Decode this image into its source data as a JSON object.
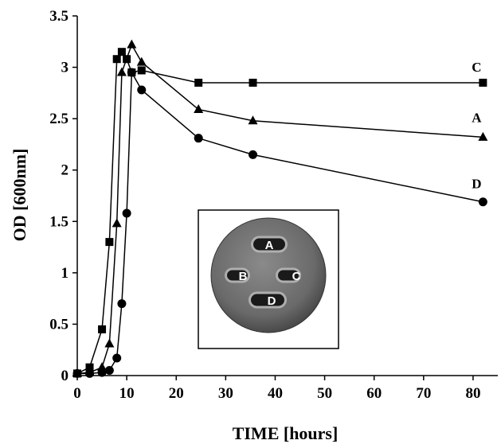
{
  "chart_data": {
    "type": "line",
    "title": "",
    "xlabel": "TIME [hours]",
    "ylabel": "OD [600nm]",
    "xlim": [
      0,
      85
    ],
    "ylim": [
      0,
      3.5
    ],
    "x_ticks": [
      "0",
      "10",
      "20",
      "30",
      "40",
      "50",
      "60",
      "70",
      "80"
    ],
    "y_ticks": [
      "0",
      "0.5",
      "1",
      "1.5",
      "2",
      "2.5",
      "3",
      "3.5"
    ],
    "grid": false,
    "legend": "none",
    "series": [
      {
        "name": "C",
        "marker": "square",
        "x": [
          0,
          2.5,
          5,
          6.5,
          8,
          9,
          10,
          11,
          13,
          24.5,
          35.5,
          82
        ],
        "y": [
          0.02,
          0.08,
          0.45,
          1.3,
          3.08,
          3.15,
          3.08,
          2.95,
          2.97,
          2.85,
          2.85,
          2.85
        ]
      },
      {
        "name": "A",
        "marker": "triangle",
        "x": [
          0,
          2.5,
          5,
          6.5,
          8,
          9,
          11,
          13,
          24.5,
          35.5,
          82
        ],
        "y": [
          0.02,
          0.03,
          0.08,
          0.31,
          1.48,
          2.95,
          3.22,
          3.05,
          2.59,
          2.48,
          2.32
        ]
      },
      {
        "name": "D",
        "marker": "circle",
        "x": [
          0,
          2.5,
          5,
          6.5,
          8,
          9,
          10,
          11,
          13,
          24.5,
          35.5,
          82
        ],
        "y": [
          0.02,
          0.02,
          0.03,
          0.05,
          0.17,
          0.7,
          1.58,
          2.95,
          2.78,
          2.31,
          2.15,
          1.69
        ]
      }
    ],
    "inset": {
      "labels": [
        "A",
        "B",
        "C",
        "D"
      ]
    }
  }
}
